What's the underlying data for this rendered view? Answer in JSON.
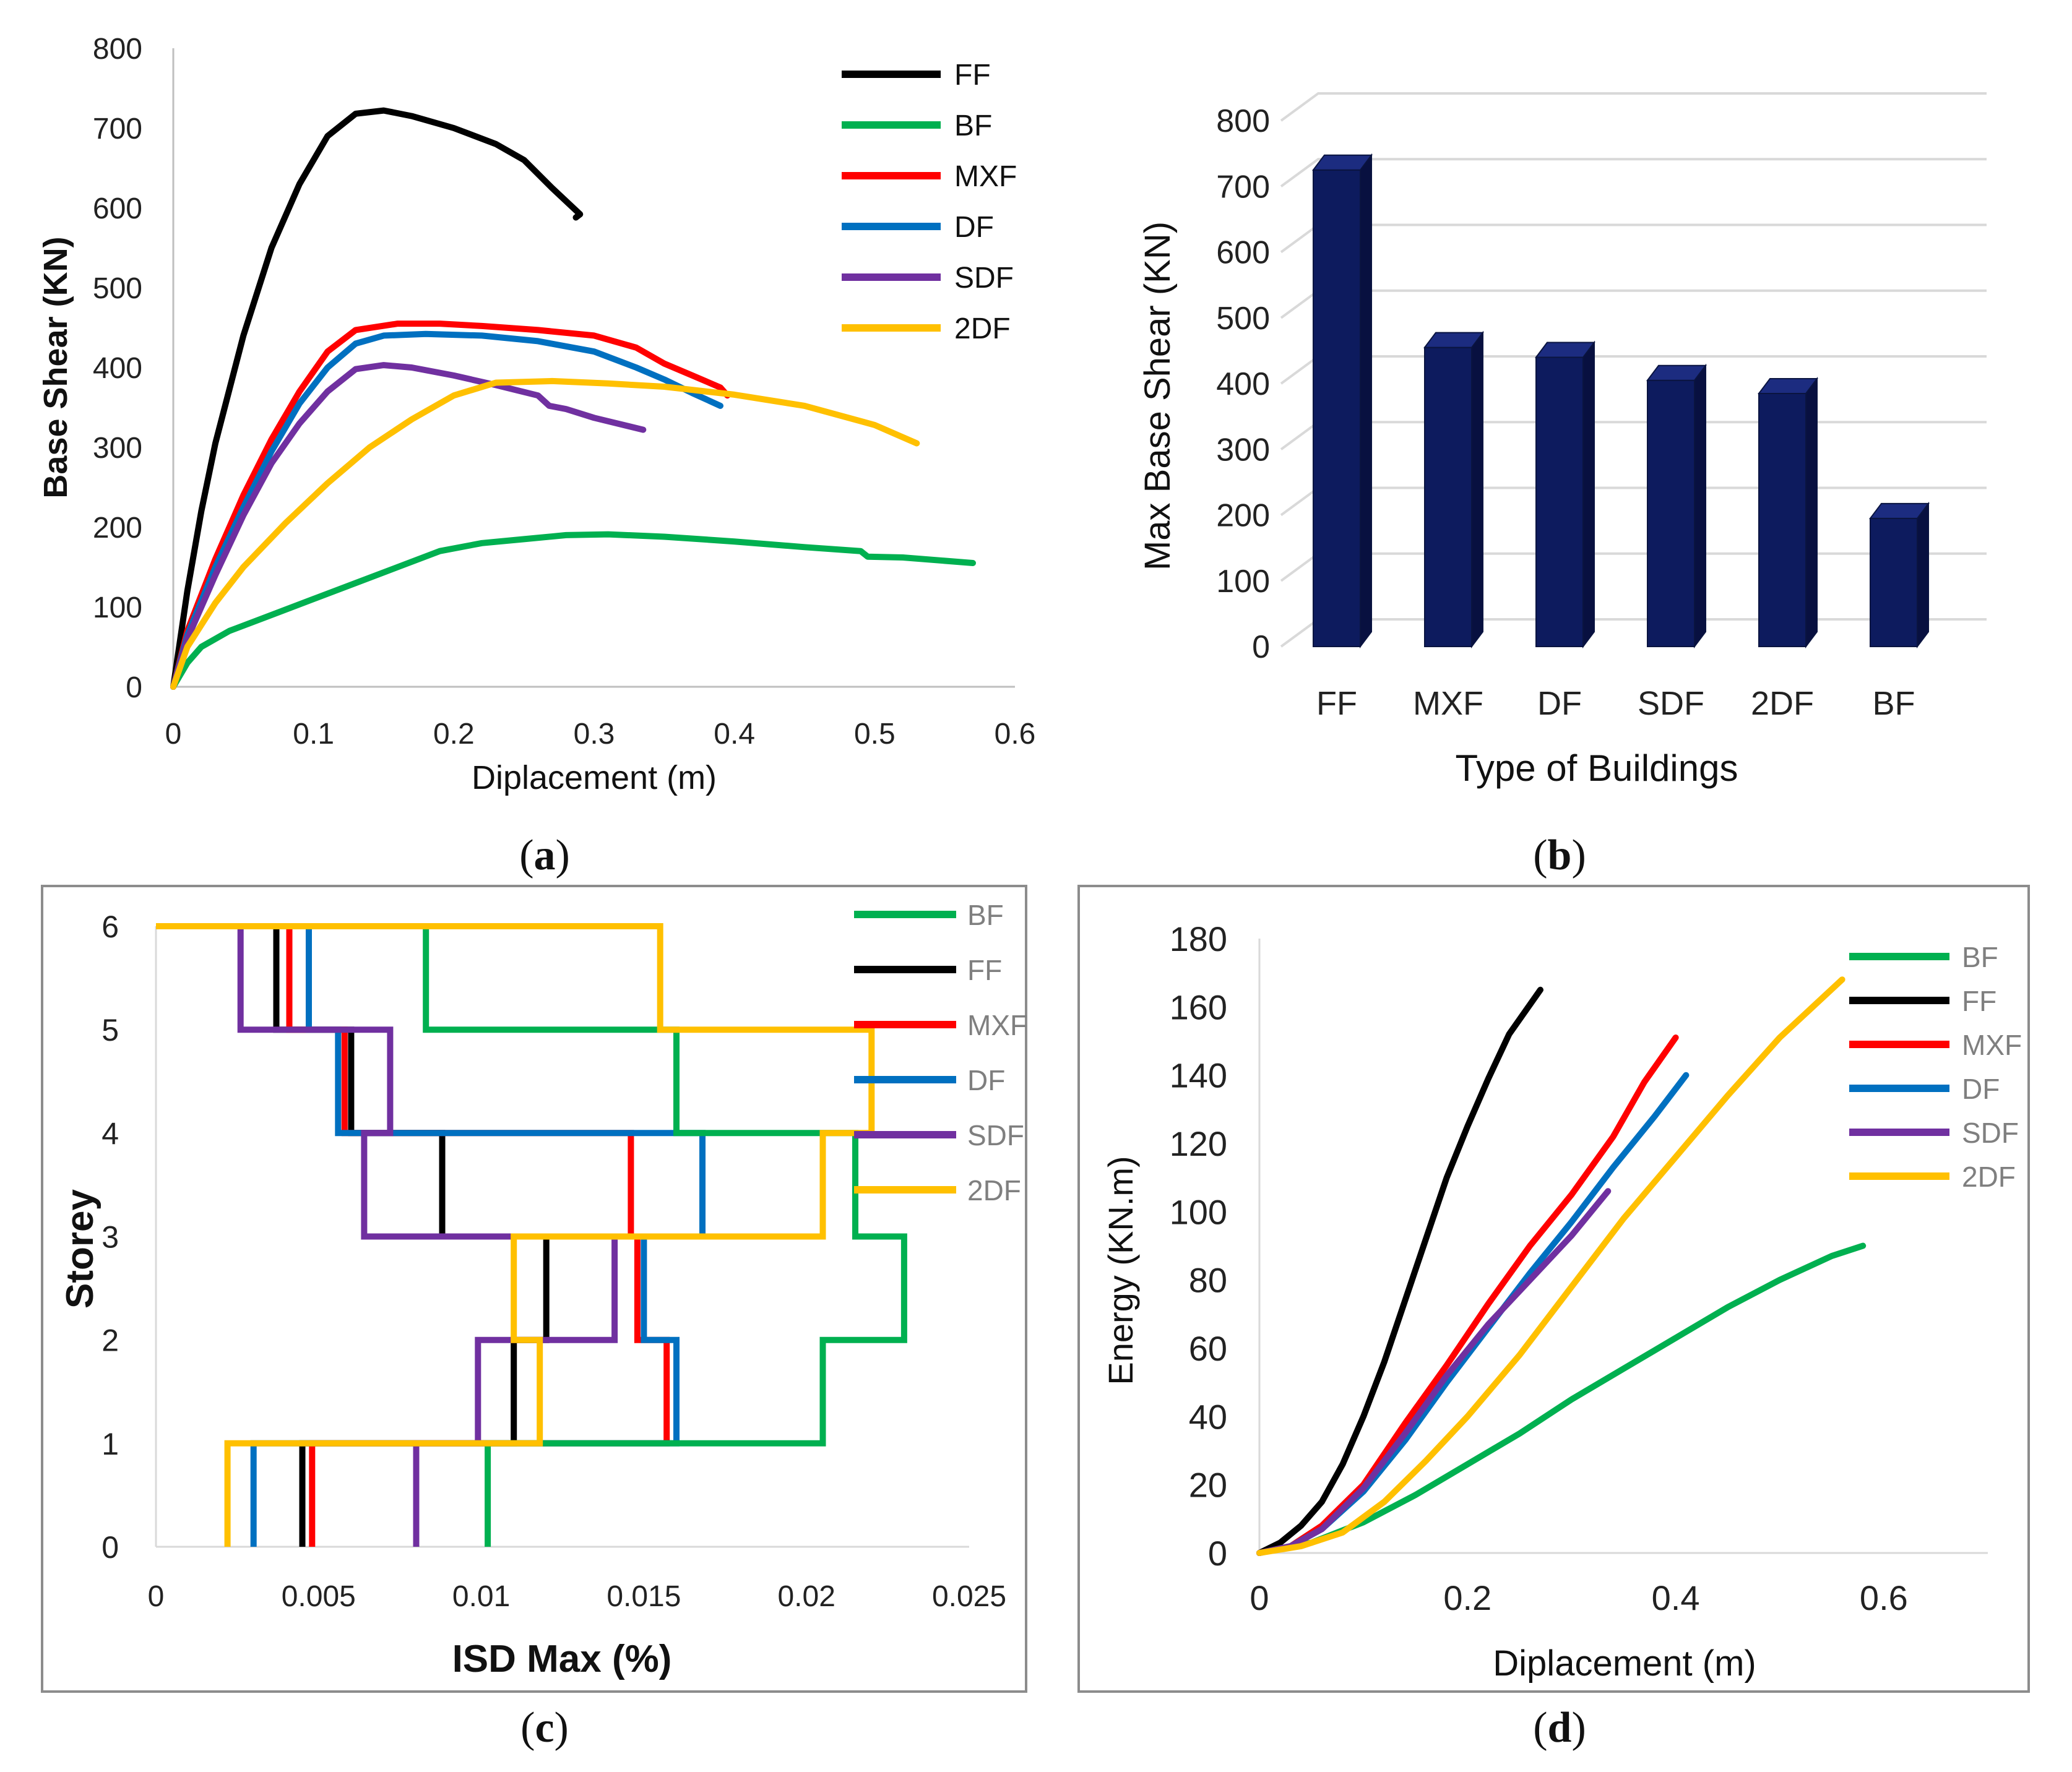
{
  "chart_data": [
    {
      "id": "a",
      "type": "line",
      "caption": "a",
      "xlabel": "Diplacement (m)",
      "ylabel": "Base Shear (KN)",
      "xlim": [
        0,
        0.6
      ],
      "ylim": [
        0,
        800
      ],
      "xticks": [
        0,
        0.1,
        0.2,
        0.3,
        0.4,
        0.5,
        0.6
      ],
      "yticks": [
        0,
        100,
        200,
        300,
        400,
        500,
        600,
        700,
        800
      ],
      "legend": [
        "FF",
        "BF",
        "MXF",
        "DF",
        "SDF",
        "2DF"
      ],
      "series": [
        {
          "name": "FF",
          "color": "#000000",
          "points": [
            [
              0,
              0
            ],
            [
              0.01,
              120
            ],
            [
              0.02,
              220
            ],
            [
              0.03,
              305
            ],
            [
              0.05,
              440
            ],
            [
              0.07,
              550
            ],
            [
              0.09,
              630
            ],
            [
              0.11,
              690
            ],
            [
              0.13,
              718
            ],
            [
              0.15,
              722
            ],
            [
              0.17,
              715
            ],
            [
              0.2,
              700
            ],
            [
              0.23,
              680
            ],
            [
              0.25,
              660
            ],
            [
              0.27,
              625
            ],
            [
              0.29,
              592
            ],
            [
              0.287,
              588
            ]
          ]
        },
        {
          "name": "BF",
          "color": "#00b050",
          "points": [
            [
              0,
              0
            ],
            [
              0.01,
              30
            ],
            [
              0.02,
              50
            ],
            [
              0.04,
              70
            ],
            [
              0.07,
              90
            ],
            [
              0.1,
              110
            ],
            [
              0.13,
              130
            ],
            [
              0.16,
              150
            ],
            [
              0.19,
              170
            ],
            [
              0.22,
              180
            ],
            [
              0.25,
              185
            ],
            [
              0.28,
              190
            ],
            [
              0.31,
              191
            ],
            [
              0.35,
              188
            ],
            [
              0.4,
              182
            ],
            [
              0.45,
              175
            ],
            [
              0.49,
              170
            ],
            [
              0.495,
              163
            ],
            [
              0.52,
              162
            ],
            [
              0.57,
              155
            ]
          ]
        },
        {
          "name": "MXF",
          "color": "#ff0000",
          "points": [
            [
              0,
              0
            ],
            [
              0.01,
              70
            ],
            [
              0.03,
              160
            ],
            [
              0.05,
              240
            ],
            [
              0.07,
              310
            ],
            [
              0.09,
              370
            ],
            [
              0.11,
              420
            ],
            [
              0.13,
              447
            ],
            [
              0.16,
              455
            ],
            [
              0.19,
              455
            ],
            [
              0.22,
              452
            ],
            [
              0.26,
              447
            ],
            [
              0.3,
              440
            ],
            [
              0.33,
              425
            ],
            [
              0.35,
              405
            ],
            [
              0.37,
              390
            ],
            [
              0.39,
              375
            ],
            [
              0.395,
              365
            ]
          ]
        },
        {
          "name": "DF",
          "color": "#0070c0",
          "points": [
            [
              0,
              0
            ],
            [
              0.01,
              65
            ],
            [
              0.03,
              150
            ],
            [
              0.05,
              225
            ],
            [
              0.07,
              295
            ],
            [
              0.09,
              355
            ],
            [
              0.11,
              400
            ],
            [
              0.13,
              430
            ],
            [
              0.15,
              440
            ],
            [
              0.18,
              442
            ],
            [
              0.22,
              440
            ],
            [
              0.26,
              433
            ],
            [
              0.3,
              420
            ],
            [
              0.33,
              400
            ],
            [
              0.35,
              385
            ],
            [
              0.37,
              368
            ],
            [
              0.39,
              352
            ]
          ]
        },
        {
          "name": "SDF",
          "color": "#7030a0",
          "points": [
            [
              0,
              0
            ],
            [
              0.01,
              60
            ],
            [
              0.03,
              140
            ],
            [
              0.05,
              215
            ],
            [
              0.07,
              280
            ],
            [
              0.09,
              330
            ],
            [
              0.11,
              370
            ],
            [
              0.13,
              398
            ],
            [
              0.15,
              403
            ],
            [
              0.17,
              400
            ],
            [
              0.2,
              390
            ],
            [
              0.23,
              378
            ],
            [
              0.26,
              365
            ],
            [
              0.268,
              352
            ],
            [
              0.28,
              348
            ],
            [
              0.3,
              337
            ],
            [
              0.335,
              322
            ]
          ]
        },
        {
          "name": "2DF",
          "color": "#ffc000",
          "points": [
            [
              0,
              0
            ],
            [
              0.01,
              50
            ],
            [
              0.03,
              105
            ],
            [
              0.05,
              150
            ],
            [
              0.08,
              205
            ],
            [
              0.11,
              255
            ],
            [
              0.14,
              300
            ],
            [
              0.17,
              335
            ],
            [
              0.2,
              365
            ],
            [
              0.23,
              381
            ],
            [
              0.27,
              383
            ],
            [
              0.31,
              380
            ],
            [
              0.35,
              376
            ],
            [
              0.4,
              366
            ],
            [
              0.45,
              352
            ],
            [
              0.5,
              328
            ],
            [
              0.53,
              305
            ]
          ]
        }
      ]
    },
    {
      "id": "b",
      "type": "bar",
      "caption": "b",
      "xlabel": "Type of Buildings",
      "ylabel": "Max Base Shear (KN)",
      "ylim": [
        0,
        800
      ],
      "yticks": [
        0,
        100,
        200,
        300,
        400,
        500,
        600,
        700,
        800
      ],
      "categories": [
        "FF",
        "MXF",
        "DF",
        "SDF",
        "2DF",
        "BF"
      ],
      "values": [
        725,
        455,
        440,
        405,
        385,
        195
      ],
      "color": "#0d1b5e"
    },
    {
      "id": "c",
      "type": "line",
      "caption": "c",
      "xlabel": "ISD Max (%)",
      "ylabel": "Storey",
      "xlim": [
        0,
        0.025
      ],
      "ylim": [
        0,
        6
      ],
      "xticks": [
        "0",
        "0.005",
        "0.01",
        "0.015",
        "0.02",
        "0.025"
      ],
      "yticks": [
        0,
        1,
        2,
        3,
        4,
        5,
        6
      ],
      "legend": [
        "BF",
        "FF",
        "MXF",
        "DF",
        "SDF",
        "2DF"
      ],
      "series": [
        {
          "name": "FF",
          "color": "#000000",
          "values": [
            0.0045,
            0.011,
            0.012,
            0.0088,
            0.006,
            0.0037
          ]
        },
        {
          "name": "MXF",
          "color": "#ff0000",
          "values": [
            0.0048,
            0.0157,
            0.0148,
            0.0146,
            0.0058,
            0.0041
          ]
        },
        {
          "name": "DF",
          "color": "#0070c0",
          "values": [
            0.003,
            0.016,
            0.015,
            0.0168,
            0.0056,
            0.0047
          ]
        },
        {
          "name": "SDF",
          "color": "#7030a0",
          "values": [
            0.008,
            0.0099,
            0.0141,
            0.0064,
            0.0072,
            0.0026
          ]
        },
        {
          "name": "BF",
          "color": "#00b050",
          "values": [
            0.0102,
            0.0205,
            0.023,
            0.0215,
            0.016,
            0.0083
          ]
        },
        {
          "name": "2DF",
          "color": "#ffc000",
          "values": [
            0.0022,
            0.0118,
            0.011,
            0.0205,
            0.022,
            0.0155
          ]
        }
      ]
    },
    {
      "id": "d",
      "type": "line",
      "caption": "d",
      "xlabel": "Diplacement (m)",
      "ylabel": "Energy (KN.m)",
      "xlim": [
        0,
        0.7
      ],
      "ylim": [
        0,
        180
      ],
      "xticks": [
        0,
        0.2,
        0.4,
        0.6
      ],
      "yticks": [
        0,
        20,
        40,
        60,
        80,
        100,
        120,
        140,
        160,
        180
      ],
      "legend": [
        "BF",
        "FF",
        "MXF",
        "DF",
        "SDF",
        "2DF"
      ],
      "series": [
        {
          "name": "BF",
          "color": "#00b050",
          "points": [
            [
              0,
              0
            ],
            [
              0.05,
              3
            ],
            [
              0.1,
              9
            ],
            [
              0.15,
              17
            ],
            [
              0.2,
              26
            ],
            [
              0.25,
              35
            ],
            [
              0.3,
              45
            ],
            [
              0.35,
              54
            ],
            [
              0.4,
              63
            ],
            [
              0.45,
              72
            ],
            [
              0.5,
              80
            ],
            [
              0.55,
              87
            ],
            [
              0.58,
              90
            ]
          ]
        },
        {
          "name": "FF",
          "color": "#000000",
          "points": [
            [
              0,
              0
            ],
            [
              0.02,
              3
            ],
            [
              0.04,
              8
            ],
            [
              0.06,
              15
            ],
            [
              0.08,
              26
            ],
            [
              0.1,
              40
            ],
            [
              0.12,
              56
            ],
            [
              0.14,
              74
            ],
            [
              0.16,
              92
            ],
            [
              0.18,
              110
            ],
            [
              0.2,
              125
            ],
            [
              0.22,
              139
            ],
            [
              0.24,
              152
            ],
            [
              0.27,
              165
            ]
          ]
        },
        {
          "name": "MXF",
          "color": "#ff0000",
          "points": [
            [
              0,
              0
            ],
            [
              0.03,
              2
            ],
            [
              0.06,
              8
            ],
            [
              0.1,
              20
            ],
            [
              0.14,
              38
            ],
            [
              0.18,
              55
            ],
            [
              0.22,
              73
            ],
            [
              0.26,
              90
            ],
            [
              0.3,
              105
            ],
            [
              0.34,
              122
            ],
            [
              0.37,
              138
            ],
            [
              0.4,
              151
            ]
          ]
        },
        {
          "name": "DF",
          "color": "#0070c0",
          "points": [
            [
              0,
              0
            ],
            [
              0.03,
              2
            ],
            [
              0.06,
              7
            ],
            [
              0.1,
              18
            ],
            [
              0.14,
              33
            ],
            [
              0.18,
              50
            ],
            [
              0.22,
              66
            ],
            [
              0.26,
              82
            ],
            [
              0.3,
              97
            ],
            [
              0.34,
              113
            ],
            [
              0.38,
              128
            ],
            [
              0.41,
              140
            ]
          ]
        },
        {
          "name": "SDF",
          "color": "#7030a0",
          "points": [
            [
              0,
              0
            ],
            [
              0.03,
              2
            ],
            [
              0.06,
              7
            ],
            [
              0.1,
              19
            ],
            [
              0.14,
              35
            ],
            [
              0.18,
              52
            ],
            [
              0.22,
              67
            ],
            [
              0.26,
              80
            ],
            [
              0.3,
              93
            ],
            [
              0.335,
              106
            ]
          ]
        },
        {
          "name": "2DF",
          "color": "#ffc000",
          "points": [
            [
              0,
              0
            ],
            [
              0.04,
              2
            ],
            [
              0.08,
              6
            ],
            [
              0.12,
              15
            ],
            [
              0.16,
              27
            ],
            [
              0.2,
              40
            ],
            [
              0.25,
              58
            ],
            [
              0.3,
              78
            ],
            [
              0.35,
              98
            ],
            [
              0.4,
              116
            ],
            [
              0.45,
              134
            ],
            [
              0.5,
              151
            ],
            [
              0.56,
              168
            ]
          ]
        }
      ]
    }
  ]
}
